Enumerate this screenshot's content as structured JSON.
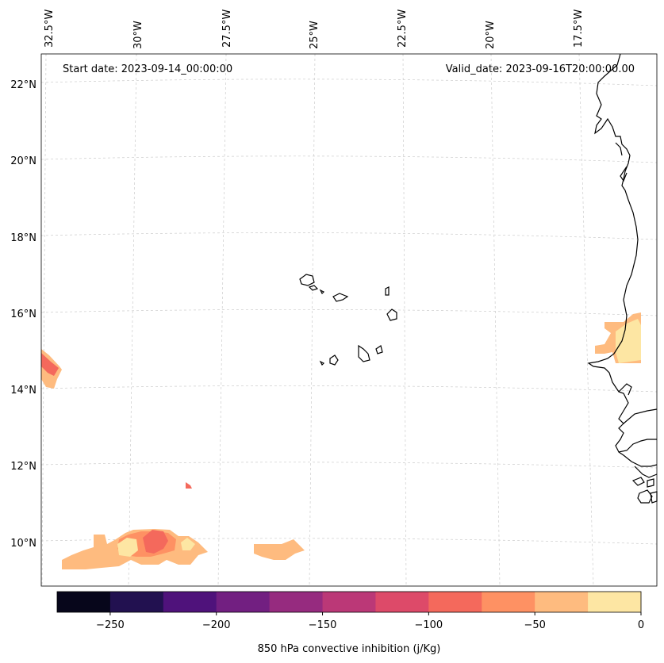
{
  "map": {
    "start_date": "Start date: 2023-09-14_00:00:00",
    "valid_date": "Valid_date: 2023-09-16T20:00:00.00",
    "variable": "850 hPa convective inhibition",
    "units": "j/Kg",
    "lat_labels": [
      "22°N",
      "20°N",
      "18°N",
      "16°N",
      "14°N",
      "12°N",
      "10°N"
    ],
    "lon_labels": [
      "32.5°W",
      "30°W",
      "27.5°W",
      "25°W",
      "22.5°W",
      "20°W",
      "17.5°W"
    ],
    "colorbar": {
      "label": "850 hPa convective inhibition (j/Kg)",
      "min": -275,
      "max": 0,
      "tick_values": [
        -250,
        -200,
        -150,
        -100,
        -50,
        0
      ],
      "tick_labels": [
        "−250",
        "−200",
        "−150",
        "−100",
        "−50",
        "0"
      ],
      "levels": [
        -275,
        -250,
        -225,
        -200,
        -175,
        -150,
        -125,
        -100,
        -75,
        -50,
        -25,
        0
      ],
      "colors": [
        "#07061b",
        "#221150",
        "#4f127b",
        "#721f81",
        "#962b7f",
        "#bb3877",
        "#dd4a69",
        "#f4695c",
        "#fe9163",
        "#febb7f",
        "#fde6a3"
      ]
    },
    "regions": [
      "Cape Verde Islands",
      "West African coast (Mauritania, Senegal, Gambia, Guinea-Bissau)"
    ]
  }
}
